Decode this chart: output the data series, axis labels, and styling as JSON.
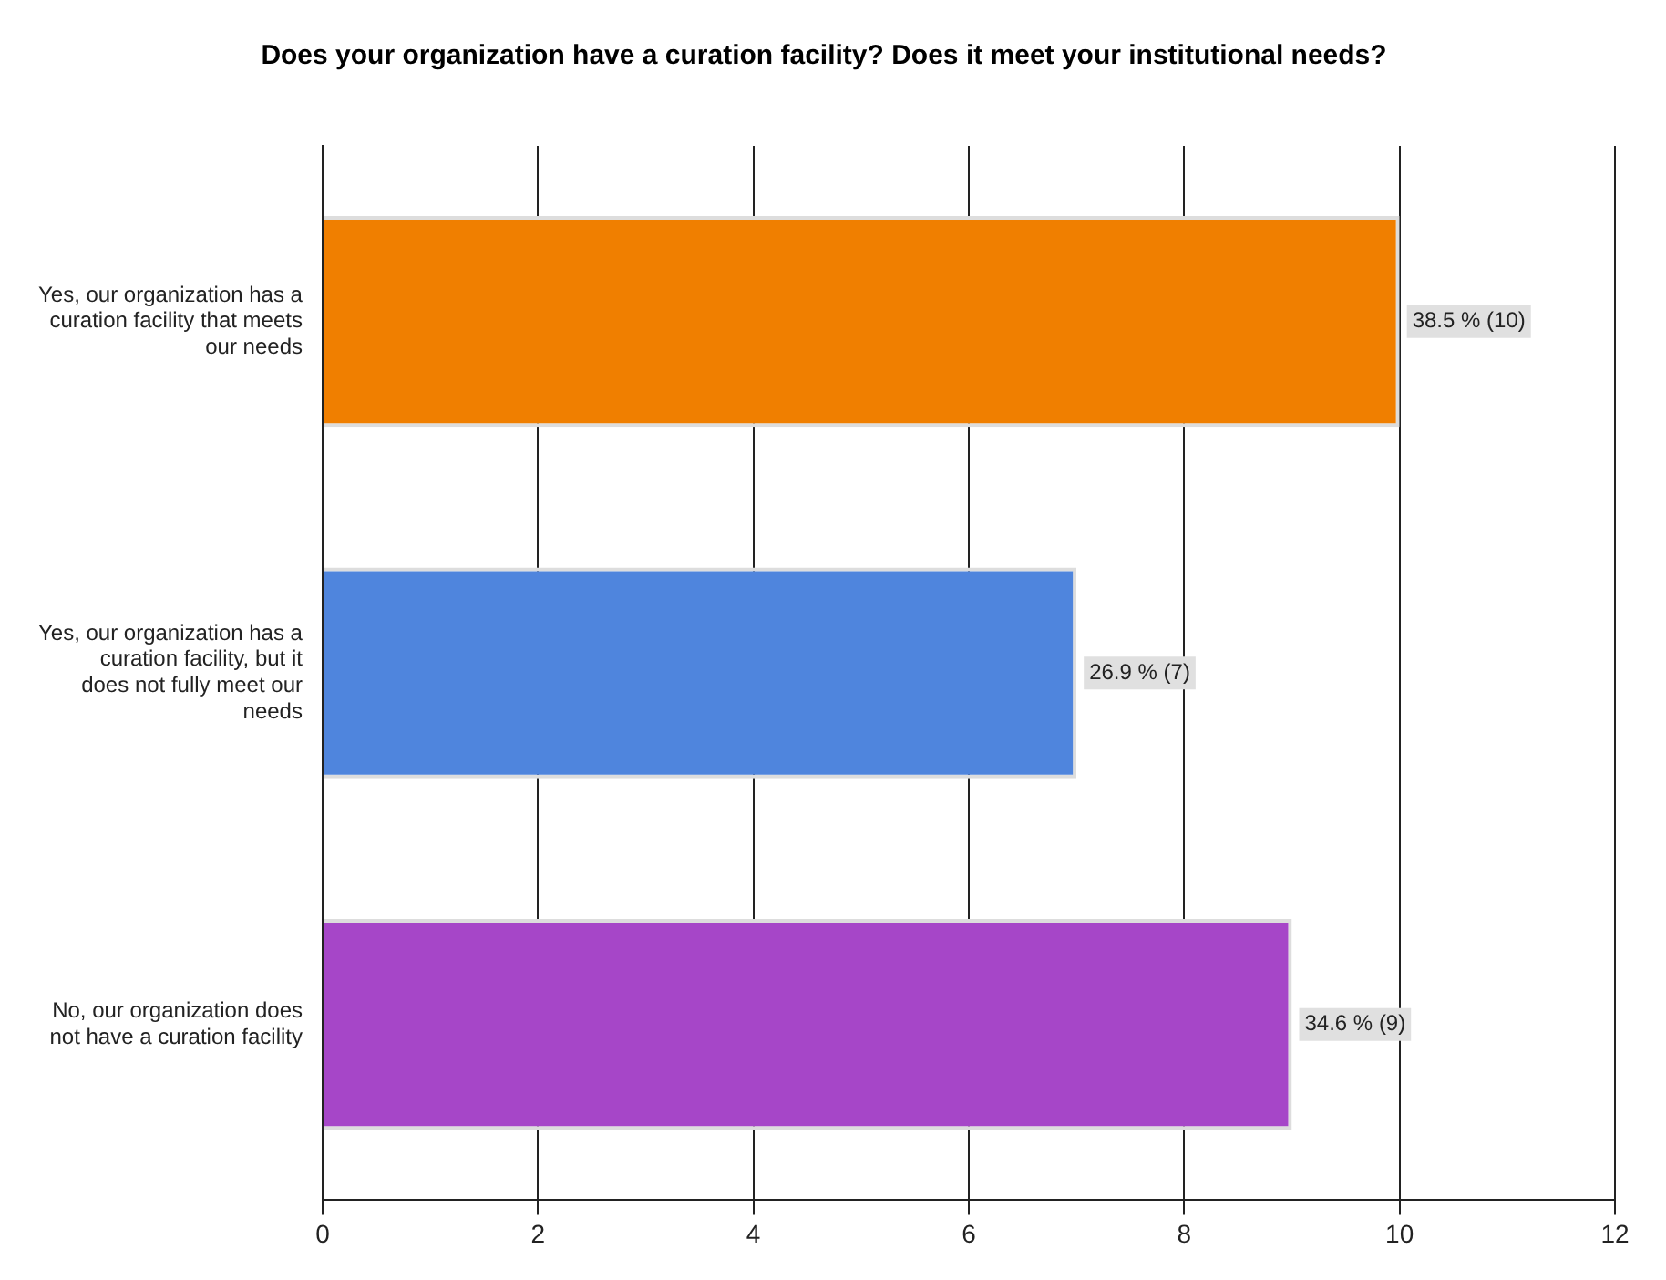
{
  "chart_data": {
    "type": "bar",
    "orientation": "horizontal",
    "title": "Does your organization have a curation facility? Does it meet your institutional needs?",
    "categories": [
      "Yes, our organization has a curation facility that meets our needs",
      "Yes, our organization has a curation facility, but it does not fully meet our needs",
      "No, our organization does not have a curation facility"
    ],
    "values": [
      10,
      7,
      9
    ],
    "colors": [
      "#f07f00",
      "#4f85dd",
      "#a646c8"
    ],
    "value_labels": [
      "38.5 % (10)",
      "26.9 % (7)",
      "34.6 % (9)"
    ],
    "xlim": [
      0,
      12
    ],
    "xticks": [
      0,
      2,
      4,
      6,
      8,
      10,
      12
    ],
    "grid": "x",
    "legend": false
  }
}
